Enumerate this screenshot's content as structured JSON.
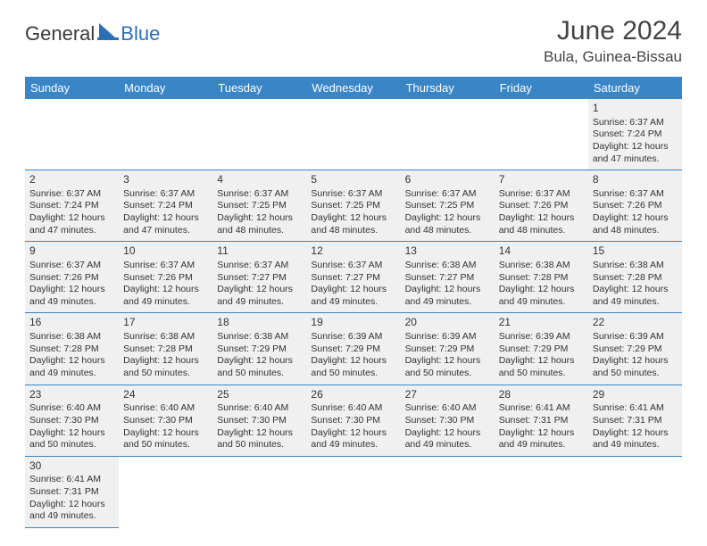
{
  "brand": {
    "part1": "General",
    "part2": "Blue"
  },
  "title": "June 2024",
  "location": "Bula, Guinea-Bissau",
  "colors": {
    "header_bg": "#3a85c6",
    "header_fg": "#ffffff",
    "cell_bg": "#f0f0f0",
    "rule": "#3a85c6",
    "text": "#333333"
  },
  "weekdays": [
    "Sunday",
    "Monday",
    "Tuesday",
    "Wednesday",
    "Thursday",
    "Friday",
    "Saturday"
  ],
  "weeks": [
    [
      null,
      null,
      null,
      null,
      null,
      null,
      {
        "n": "1",
        "sr": "6:37 AM",
        "ss": "7:24 PM",
        "dl": "12 hours and 47 minutes."
      }
    ],
    [
      {
        "n": "2",
        "sr": "6:37 AM",
        "ss": "7:24 PM",
        "dl": "12 hours and 47 minutes."
      },
      {
        "n": "3",
        "sr": "6:37 AM",
        "ss": "7:24 PM",
        "dl": "12 hours and 47 minutes."
      },
      {
        "n": "4",
        "sr": "6:37 AM",
        "ss": "7:25 PM",
        "dl": "12 hours and 48 minutes."
      },
      {
        "n": "5",
        "sr": "6:37 AM",
        "ss": "7:25 PM",
        "dl": "12 hours and 48 minutes."
      },
      {
        "n": "6",
        "sr": "6:37 AM",
        "ss": "7:25 PM",
        "dl": "12 hours and 48 minutes."
      },
      {
        "n": "7",
        "sr": "6:37 AM",
        "ss": "7:26 PM",
        "dl": "12 hours and 48 minutes."
      },
      {
        "n": "8",
        "sr": "6:37 AM",
        "ss": "7:26 PM",
        "dl": "12 hours and 48 minutes."
      }
    ],
    [
      {
        "n": "9",
        "sr": "6:37 AM",
        "ss": "7:26 PM",
        "dl": "12 hours and 49 minutes."
      },
      {
        "n": "10",
        "sr": "6:37 AM",
        "ss": "7:26 PM",
        "dl": "12 hours and 49 minutes."
      },
      {
        "n": "11",
        "sr": "6:37 AM",
        "ss": "7:27 PM",
        "dl": "12 hours and 49 minutes."
      },
      {
        "n": "12",
        "sr": "6:37 AM",
        "ss": "7:27 PM",
        "dl": "12 hours and 49 minutes."
      },
      {
        "n": "13",
        "sr": "6:38 AM",
        "ss": "7:27 PM",
        "dl": "12 hours and 49 minutes."
      },
      {
        "n": "14",
        "sr": "6:38 AM",
        "ss": "7:28 PM",
        "dl": "12 hours and 49 minutes."
      },
      {
        "n": "15",
        "sr": "6:38 AM",
        "ss": "7:28 PM",
        "dl": "12 hours and 49 minutes."
      }
    ],
    [
      {
        "n": "16",
        "sr": "6:38 AM",
        "ss": "7:28 PM",
        "dl": "12 hours and 49 minutes."
      },
      {
        "n": "17",
        "sr": "6:38 AM",
        "ss": "7:28 PM",
        "dl": "12 hours and 50 minutes."
      },
      {
        "n": "18",
        "sr": "6:38 AM",
        "ss": "7:29 PM",
        "dl": "12 hours and 50 minutes."
      },
      {
        "n": "19",
        "sr": "6:39 AM",
        "ss": "7:29 PM",
        "dl": "12 hours and 50 minutes."
      },
      {
        "n": "20",
        "sr": "6:39 AM",
        "ss": "7:29 PM",
        "dl": "12 hours and 50 minutes."
      },
      {
        "n": "21",
        "sr": "6:39 AM",
        "ss": "7:29 PM",
        "dl": "12 hours and 50 minutes."
      },
      {
        "n": "22",
        "sr": "6:39 AM",
        "ss": "7:29 PM",
        "dl": "12 hours and 50 minutes."
      }
    ],
    [
      {
        "n": "23",
        "sr": "6:40 AM",
        "ss": "7:30 PM",
        "dl": "12 hours and 50 minutes."
      },
      {
        "n": "24",
        "sr": "6:40 AM",
        "ss": "7:30 PM",
        "dl": "12 hours and 50 minutes."
      },
      {
        "n": "25",
        "sr": "6:40 AM",
        "ss": "7:30 PM",
        "dl": "12 hours and 50 minutes."
      },
      {
        "n": "26",
        "sr": "6:40 AM",
        "ss": "7:30 PM",
        "dl": "12 hours and 49 minutes."
      },
      {
        "n": "27",
        "sr": "6:40 AM",
        "ss": "7:30 PM",
        "dl": "12 hours and 49 minutes."
      },
      {
        "n": "28",
        "sr": "6:41 AM",
        "ss": "7:31 PM",
        "dl": "12 hours and 49 minutes."
      },
      {
        "n": "29",
        "sr": "6:41 AM",
        "ss": "7:31 PM",
        "dl": "12 hours and 49 minutes."
      }
    ],
    [
      {
        "n": "30",
        "sr": "6:41 AM",
        "ss": "7:31 PM",
        "dl": "12 hours and 49 minutes."
      },
      null,
      null,
      null,
      null,
      null,
      null
    ]
  ],
  "labels": {
    "sunrise": "Sunrise:",
    "sunset": "Sunset:",
    "daylight": "Daylight:"
  }
}
